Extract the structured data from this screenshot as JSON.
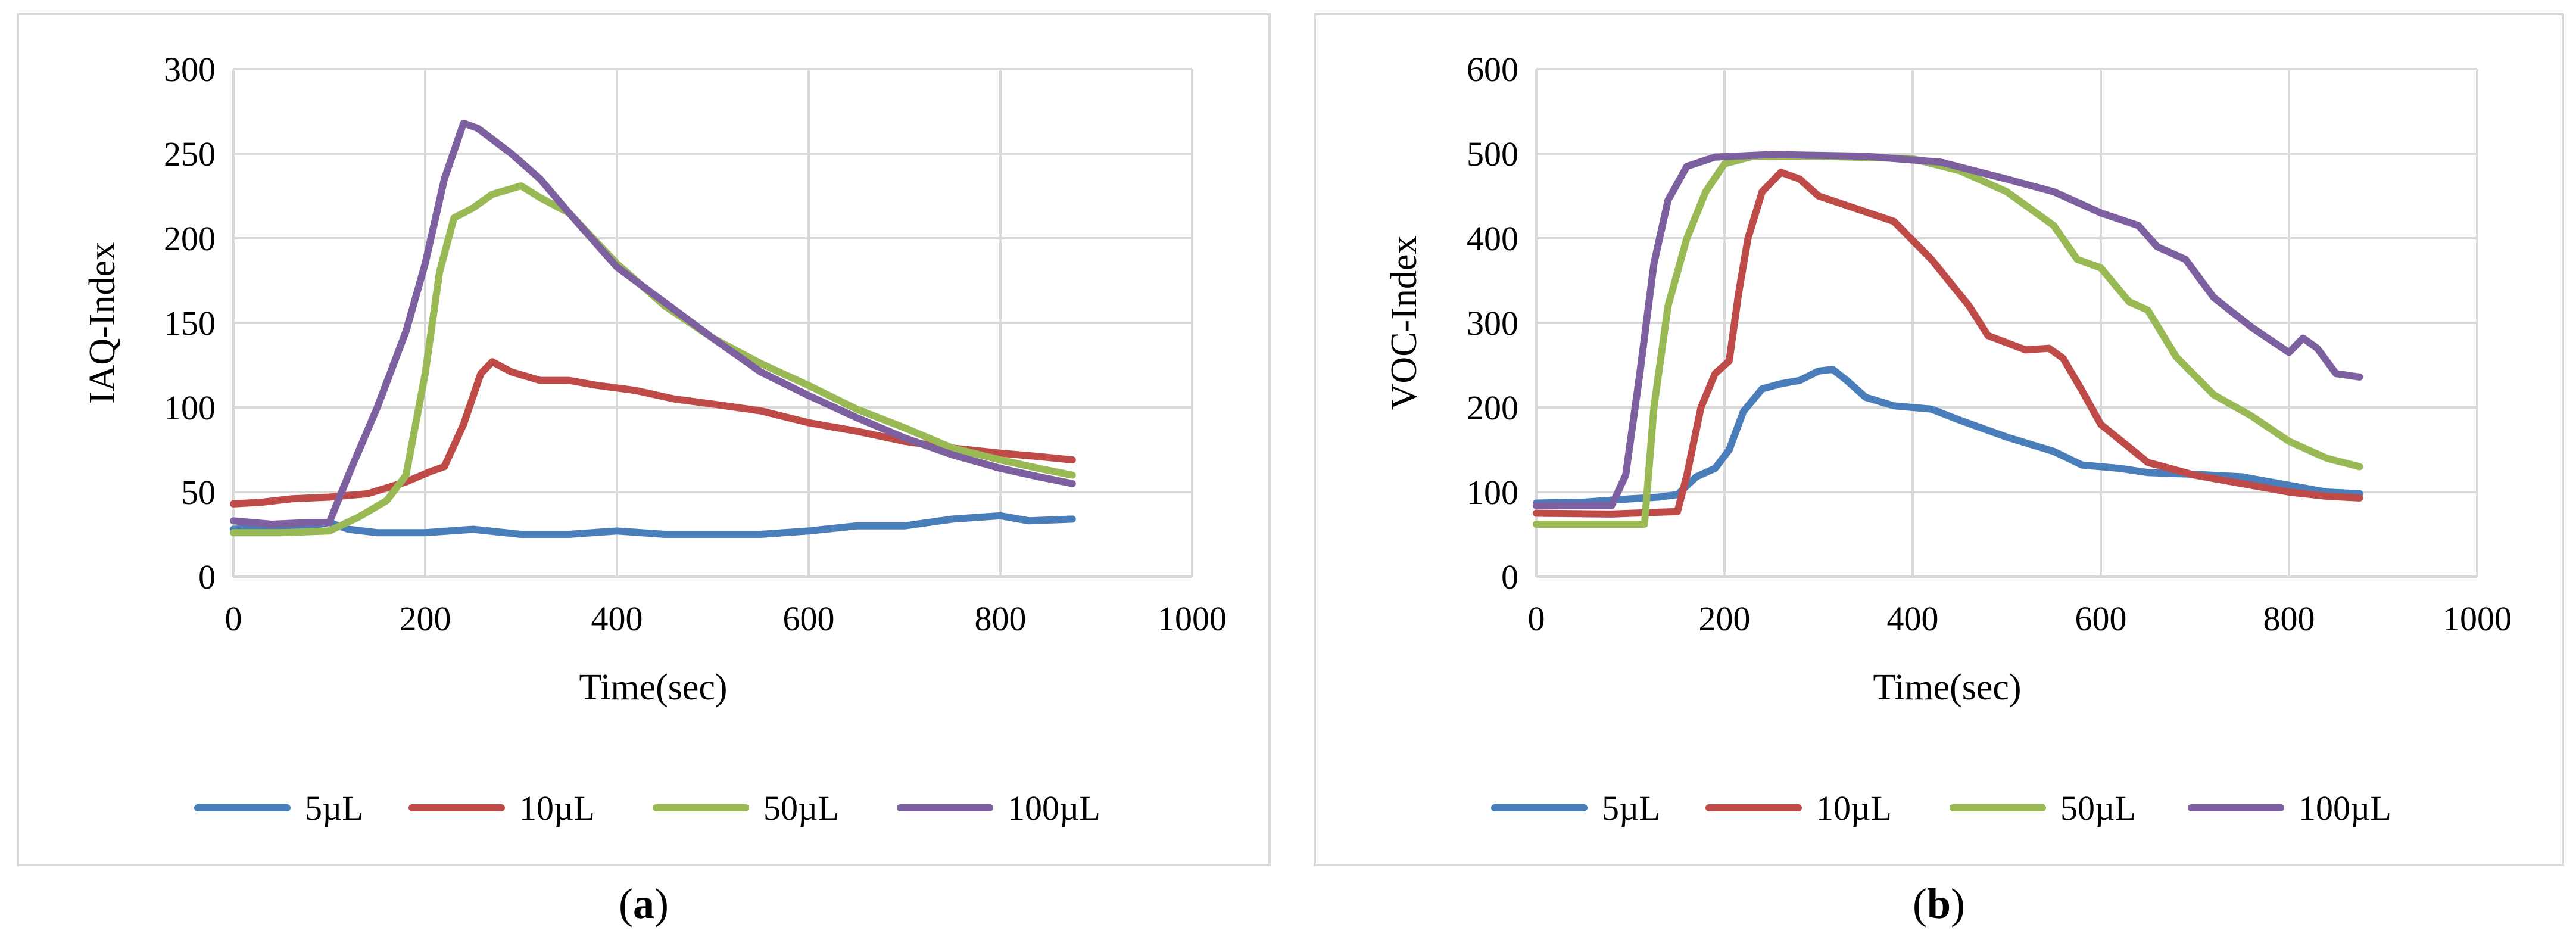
{
  "chart_data": [
    {
      "type": "line",
      "panel_label": "a",
      "xlabel": "Time(sec)",
      "ylabel": "IAQ-Index",
      "xlim": [
        0,
        1000
      ],
      "ylim": [
        0,
        300
      ],
      "xticks": [
        0,
        200,
        400,
        600,
        800,
        1000
      ],
      "yticks": [
        0,
        50,
        100,
        150,
        200,
        250,
        300
      ],
      "grid": true,
      "legend_position": "bottom",
      "series": [
        {
          "name": "5µL",
          "color": "#4a7ebb",
          "points": [
            [
              0,
              28
            ],
            [
              40,
              29
            ],
            [
              80,
              30
            ],
            [
              100,
              32
            ],
            [
              120,
              28
            ],
            [
              150,
              26
            ],
            [
              200,
              26
            ],
            [
              250,
              28
            ],
            [
              300,
              25
            ],
            [
              350,
              25
            ],
            [
              400,
              27
            ],
            [
              450,
              25
            ],
            [
              500,
              25
            ],
            [
              550,
              25
            ],
            [
              600,
              27
            ],
            [
              650,
              30
            ],
            [
              700,
              30
            ],
            [
              750,
              34
            ],
            [
              800,
              36
            ],
            [
              830,
              33
            ],
            [
              875,
              34
            ]
          ]
        },
        {
          "name": "10µL",
          "color": "#be4b48",
          "points": [
            [
              0,
              43
            ],
            [
              30,
              44
            ],
            [
              60,
              46
            ],
            [
              100,
              47
            ],
            [
              140,
              49
            ],
            [
              180,
              56
            ],
            [
              205,
              62
            ],
            [
              220,
              65
            ],
            [
              240,
              90
            ],
            [
              258,
              120
            ],
            [
              270,
              127
            ],
            [
              290,
              121
            ],
            [
              320,
              116
            ],
            [
              350,
              116
            ],
            [
              380,
              113
            ],
            [
              420,
              110
            ],
            [
              460,
              105
            ],
            [
              500,
              102
            ],
            [
              550,
              98
            ],
            [
              600,
              91
            ],
            [
              650,
              86
            ],
            [
              700,
              80
            ],
            [
              750,
              76
            ],
            [
              800,
              73
            ],
            [
              840,
              71
            ],
            [
              875,
              69
            ]
          ]
        },
        {
          "name": "50µL",
          "color": "#98b954",
          "points": [
            [
              0,
              26
            ],
            [
              50,
              26
            ],
            [
              100,
              27
            ],
            [
              130,
              35
            ],
            [
              160,
              45
            ],
            [
              180,
              60
            ],
            [
              200,
              120
            ],
            [
              215,
              180
            ],
            [
              230,
              212
            ],
            [
              250,
              218
            ],
            [
              270,
              226
            ],
            [
              300,
              231
            ],
            [
              320,
              224
            ],
            [
              350,
              215
            ],
            [
              400,
              185
            ],
            [
              450,
              160
            ],
            [
              500,
              141
            ],
            [
              550,
              126
            ],
            [
              600,
              113
            ],
            [
              650,
              99
            ],
            [
              700,
              88
            ],
            [
              750,
              76
            ],
            [
              800,
              69
            ],
            [
              840,
              64
            ],
            [
              875,
              60
            ]
          ]
        },
        {
          "name": "100µL",
          "color": "#7d60a0",
          "points": [
            [
              0,
              33
            ],
            [
              40,
              31
            ],
            [
              80,
              32
            ],
            [
              100,
              32
            ],
            [
              120,
              60
            ],
            [
              150,
              100
            ],
            [
              180,
              145
            ],
            [
              200,
              185
            ],
            [
              220,
              235
            ],
            [
              240,
              268
            ],
            [
              255,
              265
            ],
            [
              290,
              250
            ],
            [
              320,
              235
            ],
            [
              350,
              215
            ],
            [
              400,
              183
            ],
            [
              450,
              162
            ],
            [
              500,
              141
            ],
            [
              550,
              121
            ],
            [
              600,
              107
            ],
            [
              650,
              94
            ],
            [
              700,
              82
            ],
            [
              750,
              72
            ],
            [
              800,
              64
            ],
            [
              840,
              59
            ],
            [
              875,
              55
            ]
          ]
        }
      ]
    },
    {
      "type": "line",
      "panel_label": "b",
      "xlabel": "Time(sec)",
      "ylabel": "VOC-Index",
      "xlim": [
        0,
        1000
      ],
      "ylim": [
        0,
        600
      ],
      "xticks": [
        0,
        200,
        400,
        600,
        800,
        1000
      ],
      "yticks": [
        0,
        100,
        200,
        300,
        400,
        500,
        600
      ],
      "grid": true,
      "legend_position": "bottom",
      "series": [
        {
          "name": "5µL",
          "color": "#4a7ebb",
          "points": [
            [
              0,
              87
            ],
            [
              50,
              88
            ],
            [
              100,
              92
            ],
            [
              130,
              94
            ],
            [
              150,
              97
            ],
            [
              170,
              118
            ],
            [
              190,
              128
            ],
            [
              205,
              150
            ],
            [
              220,
              195
            ],
            [
              240,
              222
            ],
            [
              260,
              228
            ],
            [
              280,
              232
            ],
            [
              300,
              243
            ],
            [
              315,
              245
            ],
            [
              330,
              232
            ],
            [
              350,
              212
            ],
            [
              380,
              202
            ],
            [
              420,
              198
            ],
            [
              450,
              185
            ],
            [
              500,
              165
            ],
            [
              550,
              148
            ],
            [
              580,
              132
            ],
            [
              620,
              128
            ],
            [
              650,
              123
            ],
            [
              700,
              121
            ],
            [
              750,
              118
            ],
            [
              800,
              108
            ],
            [
              840,
              100
            ],
            [
              875,
              98
            ]
          ]
        },
        {
          "name": "10µL",
          "color": "#be4b48",
          "points": [
            [
              0,
              75
            ],
            [
              80,
              74
            ],
            [
              150,
              77
            ],
            [
              160,
              120
            ],
            [
              175,
              200
            ],
            [
              190,
              240
            ],
            [
              205,
              255
            ],
            [
              215,
              335
            ],
            [
              225,
              400
            ],
            [
              240,
              455
            ],
            [
              260,
              478
            ],
            [
              280,
              470
            ],
            [
              300,
              450
            ],
            [
              340,
              435
            ],
            [
              380,
              420
            ],
            [
              420,
              375
            ],
            [
              460,
              320
            ],
            [
              480,
              285
            ],
            [
              520,
              268
            ],
            [
              545,
              270
            ],
            [
              560,
              258
            ],
            [
              580,
              220
            ],
            [
              600,
              180
            ],
            [
              650,
              135
            ],
            [
              700,
              120
            ],
            [
              750,
              110
            ],
            [
              800,
              100
            ],
            [
              840,
              95
            ],
            [
              875,
              93
            ]
          ]
        },
        {
          "name": "50µL",
          "color": "#98b954",
          "points": [
            [
              0,
              62
            ],
            [
              100,
              62
            ],
            [
              115,
              62
            ],
            [
              125,
              200
            ],
            [
              140,
              320
            ],
            [
              160,
              400
            ],
            [
              180,
              455
            ],
            [
              200,
              488
            ],
            [
              230,
              497
            ],
            [
              300,
              497
            ],
            [
              400,
              494
            ],
            [
              450,
              480
            ],
            [
              500,
              455
            ],
            [
              550,
              415
            ],
            [
              575,
              375
            ],
            [
              600,
              365
            ],
            [
              630,
              325
            ],
            [
              650,
              315
            ],
            [
              680,
              260
            ],
            [
              720,
              215
            ],
            [
              760,
              190
            ],
            [
              800,
              160
            ],
            [
              840,
              140
            ],
            [
              875,
              130
            ]
          ]
        },
        {
          "name": "100µL",
          "color": "#7d60a0",
          "points": [
            [
              0,
              84
            ],
            [
              80,
              84
            ],
            [
              95,
              120
            ],
            [
              110,
              240
            ],
            [
              125,
              370
            ],
            [
              140,
              445
            ],
            [
              160,
              485
            ],
            [
              190,
              496
            ],
            [
              250,
              499
            ],
            [
              350,
              497
            ],
            [
              430,
              490
            ],
            [
              500,
              470
            ],
            [
              550,
              455
            ],
            [
              600,
              430
            ],
            [
              640,
              415
            ],
            [
              660,
              390
            ],
            [
              690,
              375
            ],
            [
              720,
              330
            ],
            [
              760,
              295
            ],
            [
              800,
              265
            ],
            [
              815,
              282
            ],
            [
              830,
              270
            ],
            [
              850,
              240
            ],
            [
              875,
              236
            ]
          ]
        }
      ]
    }
  ],
  "captions": {
    "a": "a",
    "b": "b"
  }
}
